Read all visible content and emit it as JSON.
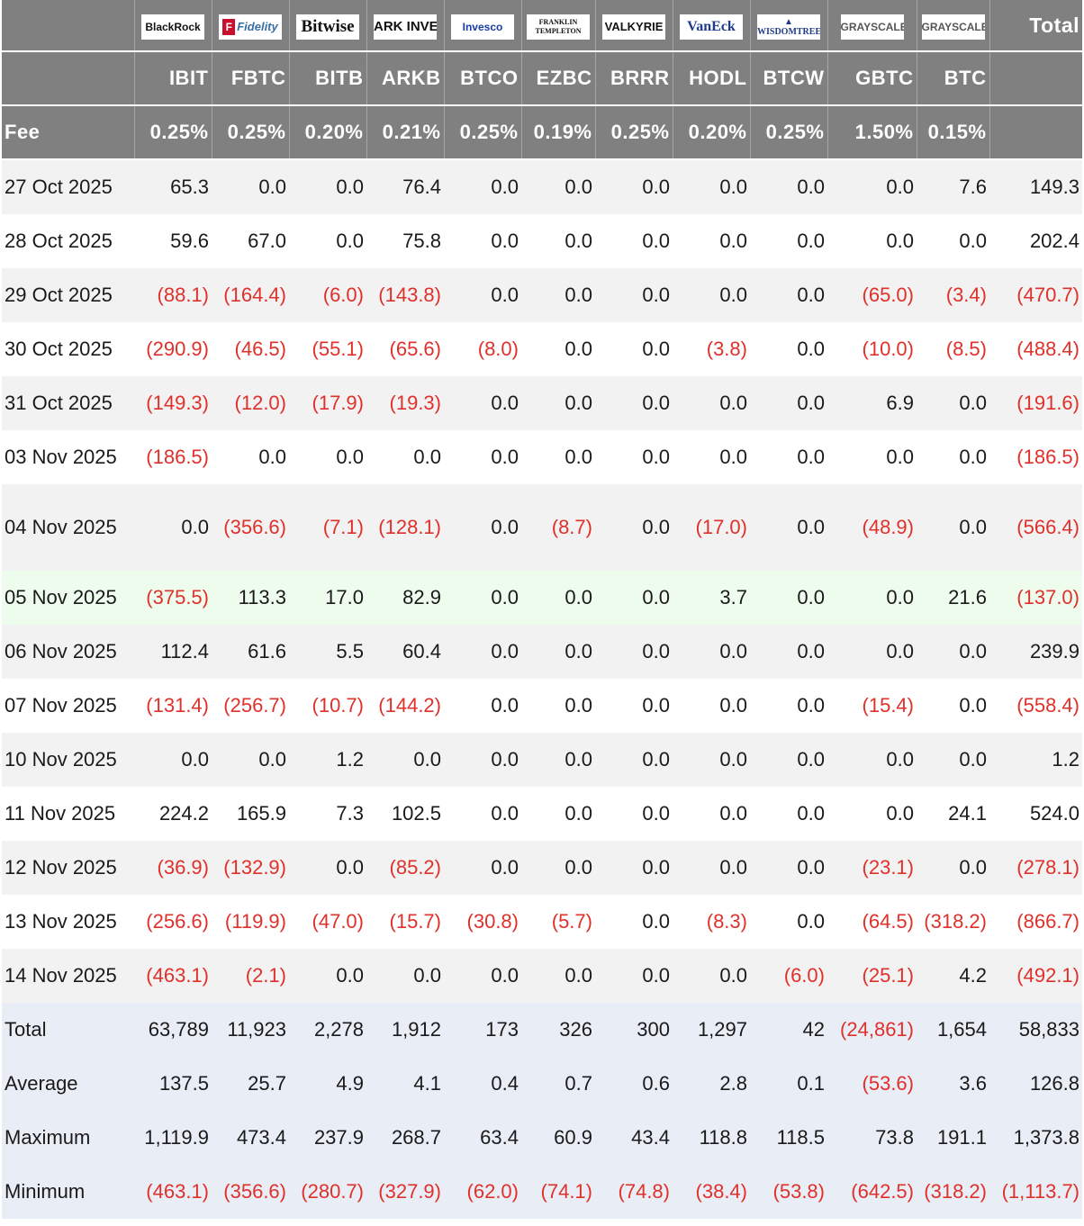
{
  "colors": {
    "header_bg": "#808080",
    "negative": "#e0302a",
    "stripe": "#f2f2f2",
    "highlight": "#eefcee",
    "summary_bg": "#e9edf6"
  },
  "header": {
    "logos": [
      "BlackRock",
      "Fidelity",
      "Bitwise",
      "ARK INVEST",
      "Invesco",
      "FRANKLIN TEMPLETON",
      "VALKYRIE",
      "VanEck",
      "WISDOMTREE",
      "GRAYSCALE",
      "GRAYSCALE"
    ],
    "total_label": "Total",
    "fee_label": "Fee",
    "tickers": [
      "IBIT",
      "FBTC",
      "BITB",
      "ARKB",
      "BTCO",
      "EZBC",
      "BRRR",
      "HODL",
      "BTCW",
      "GBTC",
      "BTC"
    ],
    "fees": [
      "0.25%",
      "0.25%",
      "0.20%",
      "0.21%",
      "0.25%",
      "0.19%",
      "0.25%",
      "0.20%",
      "0.25%",
      "1.50%",
      "0.15%"
    ]
  },
  "rows": [
    {
      "date": "27 Oct 2025",
      "cells": [
        "65.3",
        "0.0",
        "0.0",
        "76.4",
        "0.0",
        "0.0",
        "0.0",
        "0.0",
        "0.0",
        "0.0",
        "7.6",
        "149.3"
      ]
    },
    {
      "date": "28 Oct 2025",
      "cells": [
        "59.6",
        "67.0",
        "0.0",
        "75.8",
        "0.0",
        "0.0",
        "0.0",
        "0.0",
        "0.0",
        "0.0",
        "0.0",
        "202.4"
      ]
    },
    {
      "date": "29 Oct 2025",
      "cells": [
        "(88.1)",
        "(164.4)",
        "(6.0)",
        "(143.8)",
        "0.0",
        "0.0",
        "0.0",
        "0.0",
        "0.0",
        "(65.0)",
        "(3.4)",
        "(470.7)"
      ]
    },
    {
      "date": "30 Oct 2025",
      "cells": [
        "(290.9)",
        "(46.5)",
        "(55.1)",
        "(65.6)",
        "(8.0)",
        "0.0",
        "0.0",
        "(3.8)",
        "0.0",
        "(10.0)",
        "(8.5)",
        "(488.4)"
      ]
    },
    {
      "date": "31 Oct 2025",
      "cells": [
        "(149.3)",
        "(12.0)",
        "(17.9)",
        "(19.3)",
        "0.0",
        "0.0",
        "0.0",
        "0.0",
        "0.0",
        "6.9",
        "0.0",
        "(191.6)"
      ]
    },
    {
      "date": "03 Nov 2025",
      "cells": [
        "(186.5)",
        "0.0",
        "0.0",
        "0.0",
        "0.0",
        "0.0",
        "0.0",
        "0.0",
        "0.0",
        "0.0",
        "0.0",
        "(186.5)"
      ]
    },
    {
      "date": "04 Nov 2025",
      "cells": [
        "0.0",
        "(356.6)",
        "(7.1)",
        "(128.1)",
        "0.0",
        "(8.7)",
        "0.0",
        "(17.0)",
        "0.0",
        "(48.9)",
        "0.0",
        "(566.4)"
      ]
    },
    {
      "date": "05 Nov 2025",
      "cells": [
        "(375.5)",
        "113.3",
        "17.0",
        "82.9",
        "0.0",
        "0.0",
        "0.0",
        "3.7",
        "0.0",
        "0.0",
        "21.6",
        "(137.0)"
      ]
    },
    {
      "date": "06 Nov 2025",
      "cells": [
        "112.4",
        "61.6",
        "5.5",
        "60.4",
        "0.0",
        "0.0",
        "0.0",
        "0.0",
        "0.0",
        "0.0",
        "0.0",
        "239.9"
      ]
    },
    {
      "date": "07 Nov 2025",
      "cells": [
        "(131.4)",
        "(256.7)",
        "(10.7)",
        "(144.2)",
        "0.0",
        "0.0",
        "0.0",
        "0.0",
        "0.0",
        "(15.4)",
        "0.0",
        "(558.4)"
      ]
    },
    {
      "date": "10 Nov 2025",
      "cells": [
        "0.0",
        "0.0",
        "1.2",
        "0.0",
        "0.0",
        "0.0",
        "0.0",
        "0.0",
        "0.0",
        "0.0",
        "0.0",
        "1.2"
      ]
    },
    {
      "date": "11 Nov 2025",
      "cells": [
        "224.2",
        "165.9",
        "7.3",
        "102.5",
        "0.0",
        "0.0",
        "0.0",
        "0.0",
        "0.0",
        "0.0",
        "24.1",
        "524.0"
      ]
    },
    {
      "date": "12 Nov 2025",
      "cells": [
        "(36.9)",
        "(132.9)",
        "0.0",
        "(85.2)",
        "0.0",
        "0.0",
        "0.0",
        "0.0",
        "0.0",
        "(23.1)",
        "0.0",
        "(278.1)"
      ]
    },
    {
      "date": "13 Nov 2025",
      "cells": [
        "(256.6)",
        "(119.9)",
        "(47.0)",
        "(15.7)",
        "(30.8)",
        "(5.7)",
        "0.0",
        "(8.3)",
        "0.0",
        "(64.5)",
        "(318.2)",
        "(866.7)"
      ]
    },
    {
      "date": "14 Nov 2025",
      "cells": [
        "(463.1)",
        "(2.1)",
        "0.0",
        "0.0",
        "0.0",
        "0.0",
        "0.0",
        "0.0",
        "(6.0)",
        "(25.1)",
        "4.2",
        "(492.1)"
      ]
    }
  ],
  "summary": [
    {
      "label": "Total",
      "cells": [
        "63,789",
        "11,923",
        "2,278",
        "1,912",
        "173",
        "326",
        "300",
        "1,297",
        "42",
        "(24,861)",
        "1,654",
        "58,833"
      ]
    },
    {
      "label": "Average",
      "cells": [
        "137.5",
        "25.7",
        "4.9",
        "4.1",
        "0.4",
        "0.7",
        "0.6",
        "2.8",
        "0.1",
        "(53.6)",
        "3.6",
        "126.8"
      ]
    },
    {
      "label": "Maximum",
      "cells": [
        "1,119.9",
        "473.4",
        "237.9",
        "268.7",
        "63.4",
        "60.9",
        "43.4",
        "118.8",
        "118.5",
        "73.8",
        "191.1",
        "1,373.8"
      ]
    },
    {
      "label": "Minimum",
      "cells": [
        "(463.1)",
        "(356.6)",
        "(280.7)",
        "(327.9)",
        "(62.0)",
        "(74.1)",
        "(74.8)",
        "(38.4)",
        "(53.8)",
        "(642.5)",
        "(318.2)",
        "(1,113.7)"
      ]
    }
  ]
}
